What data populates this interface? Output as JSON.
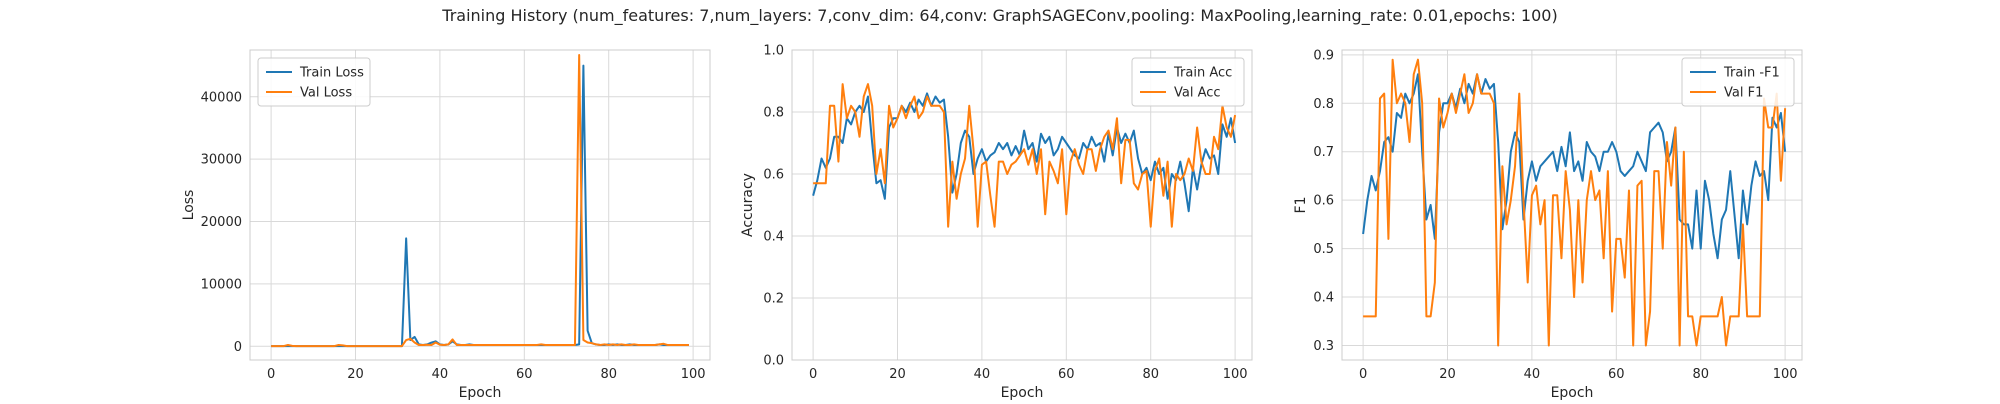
{
  "suptitle": "Training History (num_features: 7,num_layers: 7,conv_dim: 64,conv: GraphSAGEConv,pooling: MaxPooling,learning_rate: 0.01,epochs: 100)",
  "colors": {
    "train": "#1f77b4",
    "val": "#ff7f0e",
    "grid": "#d9d9d9",
    "axes_edge": "#cccccc",
    "text": "#262626"
  },
  "chart_data": [
    {
      "type": "line",
      "xlabel": "Epoch",
      "ylabel": "Loss",
      "xlim": [
        -5,
        104
      ],
      "ylim": [
        -2200,
        47500
      ],
      "xticks": [
        0,
        20,
        40,
        60,
        80,
        100
      ],
      "yticks": [
        0,
        10000,
        20000,
        30000,
        40000
      ],
      "ytick_labels": [
        "0",
        "10000",
        "20000",
        "30000",
        "40000"
      ],
      "grid": true,
      "legend_loc": "upper left",
      "series": [
        {
          "name": "Train Loss",
          "color": "#1f77b4",
          "values": [
            30,
            25,
            20,
            20,
            40,
            30,
            20,
            20,
            20,
            20,
            20,
            20,
            20,
            20,
            20,
            20,
            20,
            20,
            20,
            20,
            20,
            20,
            20,
            20,
            20,
            20,
            20,
            20,
            20,
            20,
            20,
            20,
            17300,
            1000,
            1500,
            300,
            200,
            300,
            600,
            800,
            300,
            200,
            300,
            800,
            300,
            200,
            200,
            300,
            200,
            200,
            200,
            200,
            200,
            200,
            200,
            200,
            200,
            200,
            200,
            200,
            200,
            200,
            200,
            200,
            200,
            200,
            200,
            200,
            200,
            200,
            200,
            200,
            200,
            300,
            45000,
            2500,
            500,
            300,
            200,
            200,
            300,
            200,
            300,
            200,
            200,
            300,
            200,
            200,
            200,
            200,
            200,
            200,
            300,
            200,
            200,
            200,
            200,
            200,
            200,
            200
          ]
        },
        {
          "name": "Val Loss",
          "color": "#ff7f0e",
          "values": [
            30,
            30,
            30,
            30,
            200,
            60,
            30,
            30,
            30,
            30,
            30,
            30,
            30,
            30,
            30,
            30,
            200,
            150,
            30,
            30,
            30,
            30,
            30,
            30,
            30,
            30,
            30,
            30,
            30,
            30,
            30,
            30,
            1000,
            1200,
            600,
            200,
            200,
            250,
            200,
            600,
            250,
            200,
            300,
            1100,
            200,
            200,
            200,
            200,
            200,
            200,
            200,
            200,
            200,
            200,
            200,
            200,
            200,
            200,
            200,
            200,
            200,
            200,
            200,
            200,
            300,
            200,
            200,
            200,
            200,
            200,
            200,
            200,
            200,
            46700,
            1000,
            600,
            500,
            300,
            200,
            300,
            200,
            300,
            200,
            300,
            200,
            200,
            300,
            200,
            200,
            200,
            200,
            200,
            300,
            400,
            200,
            200,
            200,
            200,
            200,
            200
          ]
        }
      ]
    },
    {
      "type": "line",
      "xlabel": "Epoch",
      "ylabel": "Accuracy",
      "xlim": [
        -5,
        104
      ],
      "ylim": [
        0.0,
        1.0
      ],
      "xticks": [
        0,
        20,
        40,
        60,
        80,
        100
      ],
      "yticks": [
        0.0,
        0.2,
        0.4,
        0.6,
        0.8,
        1.0
      ],
      "ytick_labels": [
        "0.0",
        "0.2",
        "0.4",
        "0.6",
        "0.8",
        "1.0"
      ],
      "grid": true,
      "legend_loc": "upper right",
      "series": [
        {
          "name": "Train Acc",
          "color": "#1f77b4",
          "values": [
            0.53,
            0.58,
            0.65,
            0.62,
            0.65,
            0.72,
            0.72,
            0.7,
            0.78,
            0.76,
            0.8,
            0.82,
            0.8,
            0.85,
            0.7,
            0.57,
            0.58,
            0.52,
            0.75,
            0.78,
            0.78,
            0.82,
            0.8,
            0.83,
            0.8,
            0.84,
            0.82,
            0.86,
            0.82,
            0.85,
            0.83,
            0.84,
            0.72,
            0.54,
            0.6,
            0.7,
            0.74,
            0.72,
            0.6,
            0.65,
            0.68,
            0.64,
            0.66,
            0.67,
            0.7,
            0.68,
            0.7,
            0.66,
            0.69,
            0.66,
            0.74,
            0.68,
            0.7,
            0.64,
            0.73,
            0.7,
            0.72,
            0.66,
            0.68,
            0.72,
            0.7,
            0.68,
            0.66,
            0.65,
            0.7,
            0.68,
            0.72,
            0.69,
            0.7,
            0.64,
            0.73,
            0.66,
            0.75,
            0.7,
            0.73,
            0.7,
            0.74,
            0.65,
            0.6,
            0.62,
            0.58,
            0.64,
            0.6,
            0.62,
            0.52,
            0.6,
            0.58,
            0.64,
            0.57,
            0.48,
            0.62,
            0.55,
            0.63,
            0.68,
            0.65,
            0.66,
            0.6,
            0.76,
            0.72,
            0.78,
            0.7
          ]
        },
        {
          "name": "Val Acc",
          "color": "#ff7f0e",
          "values": [
            0.57,
            0.57,
            0.57,
            0.57,
            0.82,
            0.82,
            0.64,
            0.89,
            0.78,
            0.82,
            0.8,
            0.72,
            0.85,
            0.89,
            0.82,
            0.6,
            0.68,
            0.57,
            0.82,
            0.75,
            0.78,
            0.82,
            0.78,
            0.82,
            0.85,
            0.78,
            0.8,
            0.85,
            0.82,
            0.82,
            0.82,
            0.8,
            0.43,
            0.64,
            0.52,
            0.6,
            0.65,
            0.82,
            0.68,
            0.43,
            0.63,
            0.64,
            0.53,
            0.43,
            0.64,
            0.64,
            0.6,
            0.63,
            0.64,
            0.66,
            0.68,
            0.63,
            0.68,
            0.6,
            0.68,
            0.47,
            0.64,
            0.61,
            0.57,
            0.68,
            0.47,
            0.64,
            0.68,
            0.63,
            0.6,
            0.68,
            0.68,
            0.61,
            0.68,
            0.72,
            0.74,
            0.68,
            0.78,
            0.57,
            0.71,
            0.71,
            0.57,
            0.55,
            0.6,
            0.61,
            0.43,
            0.61,
            0.65,
            0.53,
            0.64,
            0.43,
            0.6,
            0.58,
            0.6,
            0.65,
            0.61,
            0.75,
            0.64,
            0.6,
            0.6,
            0.72,
            0.68,
            0.82,
            0.75,
            0.72,
            0.79
          ]
        }
      ]
    },
    {
      "type": "line",
      "xlabel": "Epoch",
      "ylabel": "F1",
      "xlim": [
        -5,
        104
      ],
      "ylim": [
        0.27,
        0.91
      ],
      "xticks": [
        0,
        20,
        40,
        60,
        80,
        100
      ],
      "yticks": [
        0.3,
        0.4,
        0.5,
        0.6,
        0.7,
        0.8,
        0.9
      ],
      "ytick_labels": [
        "0.3",
        "0.4",
        "0.5",
        "0.6",
        "0.7",
        "0.8",
        "0.9"
      ],
      "grid": true,
      "legend_loc": "upper right",
      "series": [
        {
          "name": "Train -F1",
          "color": "#1f77b4",
          "values": [
            0.53,
            0.6,
            0.65,
            0.62,
            0.66,
            0.72,
            0.73,
            0.7,
            0.78,
            0.77,
            0.82,
            0.8,
            0.82,
            0.86,
            0.7,
            0.56,
            0.59,
            0.52,
            0.74,
            0.8,
            0.8,
            0.82,
            0.79,
            0.83,
            0.8,
            0.84,
            0.82,
            0.86,
            0.82,
            0.85,
            0.83,
            0.84,
            0.72,
            0.54,
            0.6,
            0.7,
            0.74,
            0.72,
            0.56,
            0.64,
            0.68,
            0.64,
            0.67,
            0.68,
            0.69,
            0.7,
            0.66,
            0.71,
            0.67,
            0.74,
            0.66,
            0.68,
            0.64,
            0.72,
            0.7,
            0.69,
            0.66,
            0.7,
            0.7,
            0.72,
            0.7,
            0.66,
            0.65,
            0.66,
            0.67,
            0.7,
            0.68,
            0.66,
            0.74,
            0.75,
            0.76,
            0.74,
            0.68,
            0.7,
            0.75,
            0.56,
            0.55,
            0.55,
            0.5,
            0.62,
            0.5,
            0.64,
            0.6,
            0.53,
            0.48,
            0.56,
            0.58,
            0.66,
            0.57,
            0.48,
            0.62,
            0.55,
            0.63,
            0.68,
            0.65,
            0.66,
            0.6,
            0.77,
            0.75,
            0.78,
            0.7
          ]
        },
        {
          "name": "Val F1",
          "color": "#ff7f0e",
          "values": [
            0.36,
            0.36,
            0.36,
            0.36,
            0.81,
            0.82,
            0.52,
            0.89,
            0.8,
            0.82,
            0.8,
            0.72,
            0.86,
            0.89,
            0.8,
            0.36,
            0.36,
            0.43,
            0.81,
            0.75,
            0.78,
            0.82,
            0.78,
            0.82,
            0.86,
            0.78,
            0.8,
            0.86,
            0.82,
            0.82,
            0.82,
            0.8,
            0.3,
            0.67,
            0.55,
            0.6,
            0.67,
            0.82,
            0.6,
            0.43,
            0.61,
            0.63,
            0.55,
            0.6,
            0.3,
            0.61,
            0.61,
            0.48,
            0.66,
            0.58,
            0.4,
            0.6,
            0.43,
            0.6,
            0.66,
            0.6,
            0.62,
            0.48,
            0.66,
            0.37,
            0.52,
            0.52,
            0.44,
            0.62,
            0.3,
            0.63,
            0.64,
            0.3,
            0.37,
            0.66,
            0.66,
            0.5,
            0.72,
            0.63,
            0.75,
            0.3,
            0.7,
            0.36,
            0.36,
            0.3,
            0.36,
            0.36,
            0.36,
            0.36,
            0.36,
            0.4,
            0.3,
            0.36,
            0.36,
            0.36,
            0.55,
            0.36,
            0.36,
            0.36,
            0.36,
            0.81,
            0.75,
            0.75,
            0.82,
            0.64,
            0.79
          ]
        }
      ]
    }
  ]
}
